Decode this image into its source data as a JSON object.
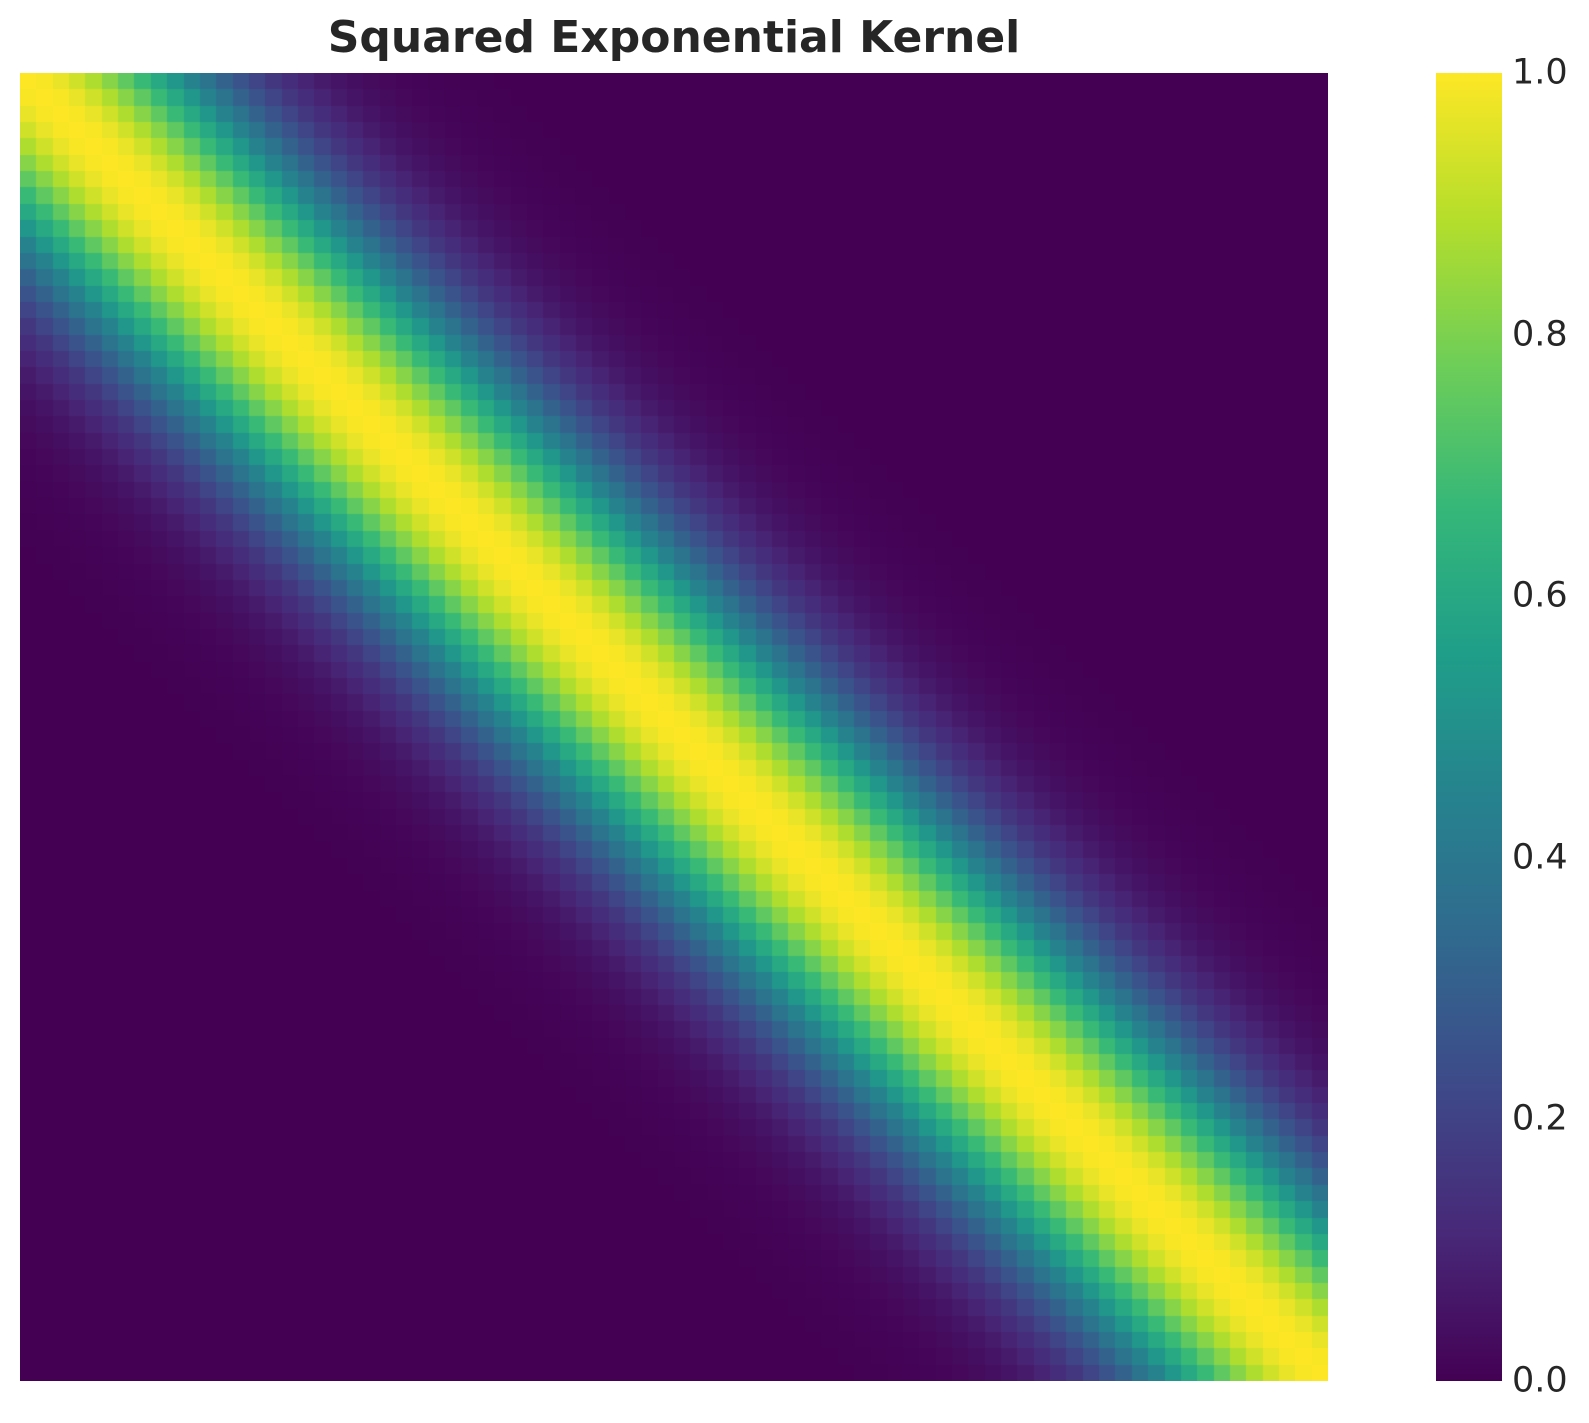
{
  "chart_data": {
    "type": "heatmap",
    "title": "Squared Exponential Kernel",
    "xlabel": "",
    "ylabel": "",
    "grid": false,
    "matrix_size": [
      80,
      80
    ],
    "function": "exp(-0.5 * (x_i - x_j)^2 / length_scale^2)",
    "x_range": [
      0,
      1
    ],
    "length_scale": 0.1,
    "colormap": "viridis",
    "value_range": [
      0.0,
      1.0
    ],
    "diagonal_value": 1.0,
    "colorbar": {
      "ticks": [
        0.0,
        0.2,
        0.4,
        0.6,
        0.8,
        1.0
      ],
      "tick_labels": [
        "0.0",
        "0.2",
        "0.4",
        "0.6",
        "0.8",
        "1.0"
      ]
    }
  },
  "colors": {
    "viridis_stops": [
      "#440154",
      "#482878",
      "#3e4989",
      "#31688e",
      "#26828e",
      "#1f9e89",
      "#35b779",
      "#6ece58",
      "#b5de2b",
      "#fde725"
    ],
    "text": "#262626"
  }
}
